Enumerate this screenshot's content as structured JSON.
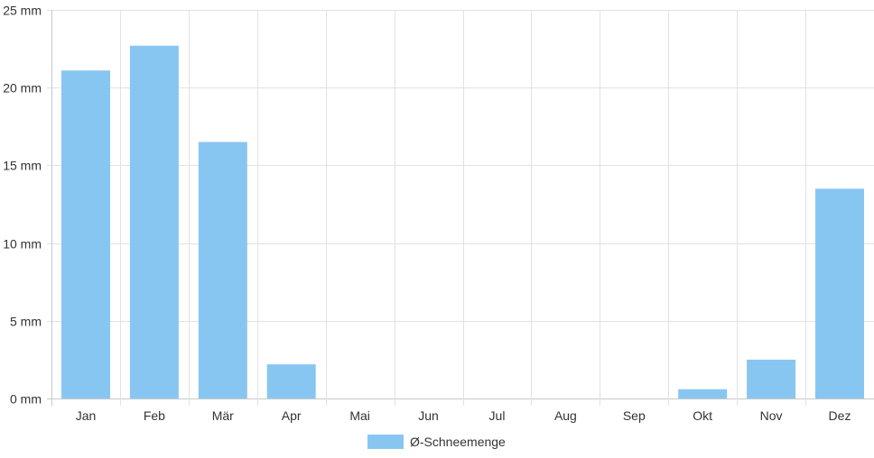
{
  "chart_data": {
    "type": "bar",
    "categories": [
      "Jan",
      "Feb",
      "Mär",
      "Apr",
      "Mai",
      "Jun",
      "Jul",
      "Aug",
      "Sep",
      "Okt",
      "Nov",
      "Dez"
    ],
    "series": [
      {
        "name": "Ø-Schneemenge",
        "values": [
          21.1,
          22.7,
          16.5,
          2.2,
          0,
          0,
          0,
          0,
          0,
          0.6,
          2.5,
          13.5
        ]
      }
    ],
    "yticks": [
      "0 mm",
      "5 mm",
      "10 mm",
      "15 mm",
      "20 mm",
      "25 mm"
    ],
    "ylim": [
      0,
      25
    ],
    "unit": "mm",
    "grid": true,
    "legend_position": "bottom-center",
    "colors": {
      "bar": "#88c6f2",
      "grid": "#e2e2e2",
      "axis": "#c8c8c8"
    }
  }
}
